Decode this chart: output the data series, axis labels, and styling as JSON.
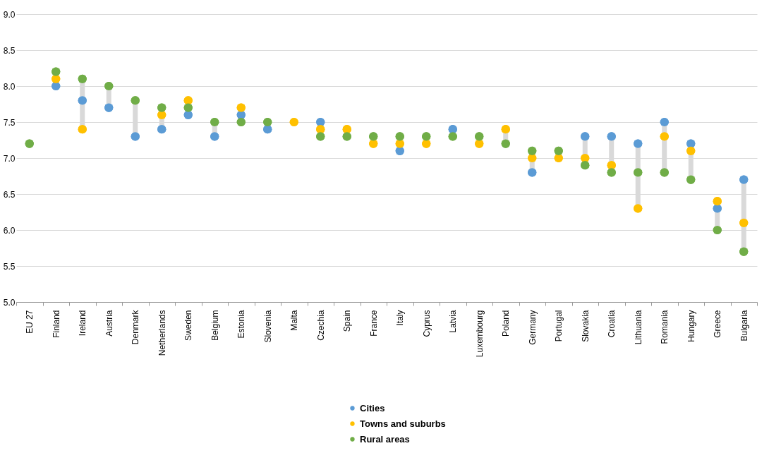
{
  "chart_data": {
    "type": "scatter",
    "categories": [
      "EU 27",
      "Finland",
      "Ireland",
      "Austria",
      "Denmark",
      "Netherlands",
      "Sweden",
      "Belgium",
      "Estonia",
      "Slovenia",
      "Malta",
      "Czechia",
      "Spain",
      "France",
      "Italy",
      "Cyprus",
      "Latvia",
      "Luxembourg",
      "Poland",
      "Germany",
      "Portugal",
      "Slovakia",
      "Croatia",
      "Lithuania",
      "Romania",
      "Hungary",
      "Greece",
      "Bulgaria"
    ],
    "series": [
      {
        "name": "Cities",
        "color": "#5b9bd5",
        "values": [
          null,
          8.0,
          7.8,
          7.7,
          7.3,
          7.4,
          7.6,
          7.3,
          7.6,
          7.4,
          null,
          7.5,
          null,
          null,
          7.1,
          null,
          7.4,
          null,
          null,
          6.8,
          null,
          7.3,
          7.3,
          7.2,
          7.5,
          7.2,
          6.3,
          6.7
        ]
      },
      {
        "name": "Towns and suburbs",
        "color": "#ffc000",
        "values": [
          null,
          8.1,
          7.4,
          null,
          null,
          7.6,
          7.8,
          null,
          7.7,
          null,
          7.5,
          7.4,
          7.4,
          7.2,
          7.2,
          7.2,
          null,
          7.2,
          7.4,
          7.0,
          7.0,
          7.0,
          6.9,
          6.3,
          7.3,
          7.1,
          6.4,
          6.1
        ]
      },
      {
        "name": "Rural areas",
        "color": "#70ad47",
        "values": [
          7.2,
          8.2,
          8.1,
          8.0,
          7.8,
          7.7,
          7.7,
          7.5,
          7.5,
          7.5,
          null,
          7.3,
          7.3,
          7.3,
          7.3,
          7.3,
          7.3,
          7.3,
          7.2,
          7.1,
          7.1,
          6.9,
          6.8,
          6.8,
          6.8,
          6.7,
          6.0,
          5.7
        ]
      }
    ],
    "ylim": [
      5.0,
      9.0
    ],
    "yticks": [
      {
        "value": 5,
        "label": "5.0"
      },
      5.5,
      {
        "value": 6,
        "label": "6.0"
      },
      6.5,
      {
        "value": 7,
        "label": "7.0"
      },
      7.5,
      {
        "value": 8,
        "label": "8.0"
      },
      8.5,
      {
        "value": 9,
        "label": "9.0"
      }
    ],
    "grid": "y",
    "legend": "bottom",
    "marker": "circle"
  }
}
